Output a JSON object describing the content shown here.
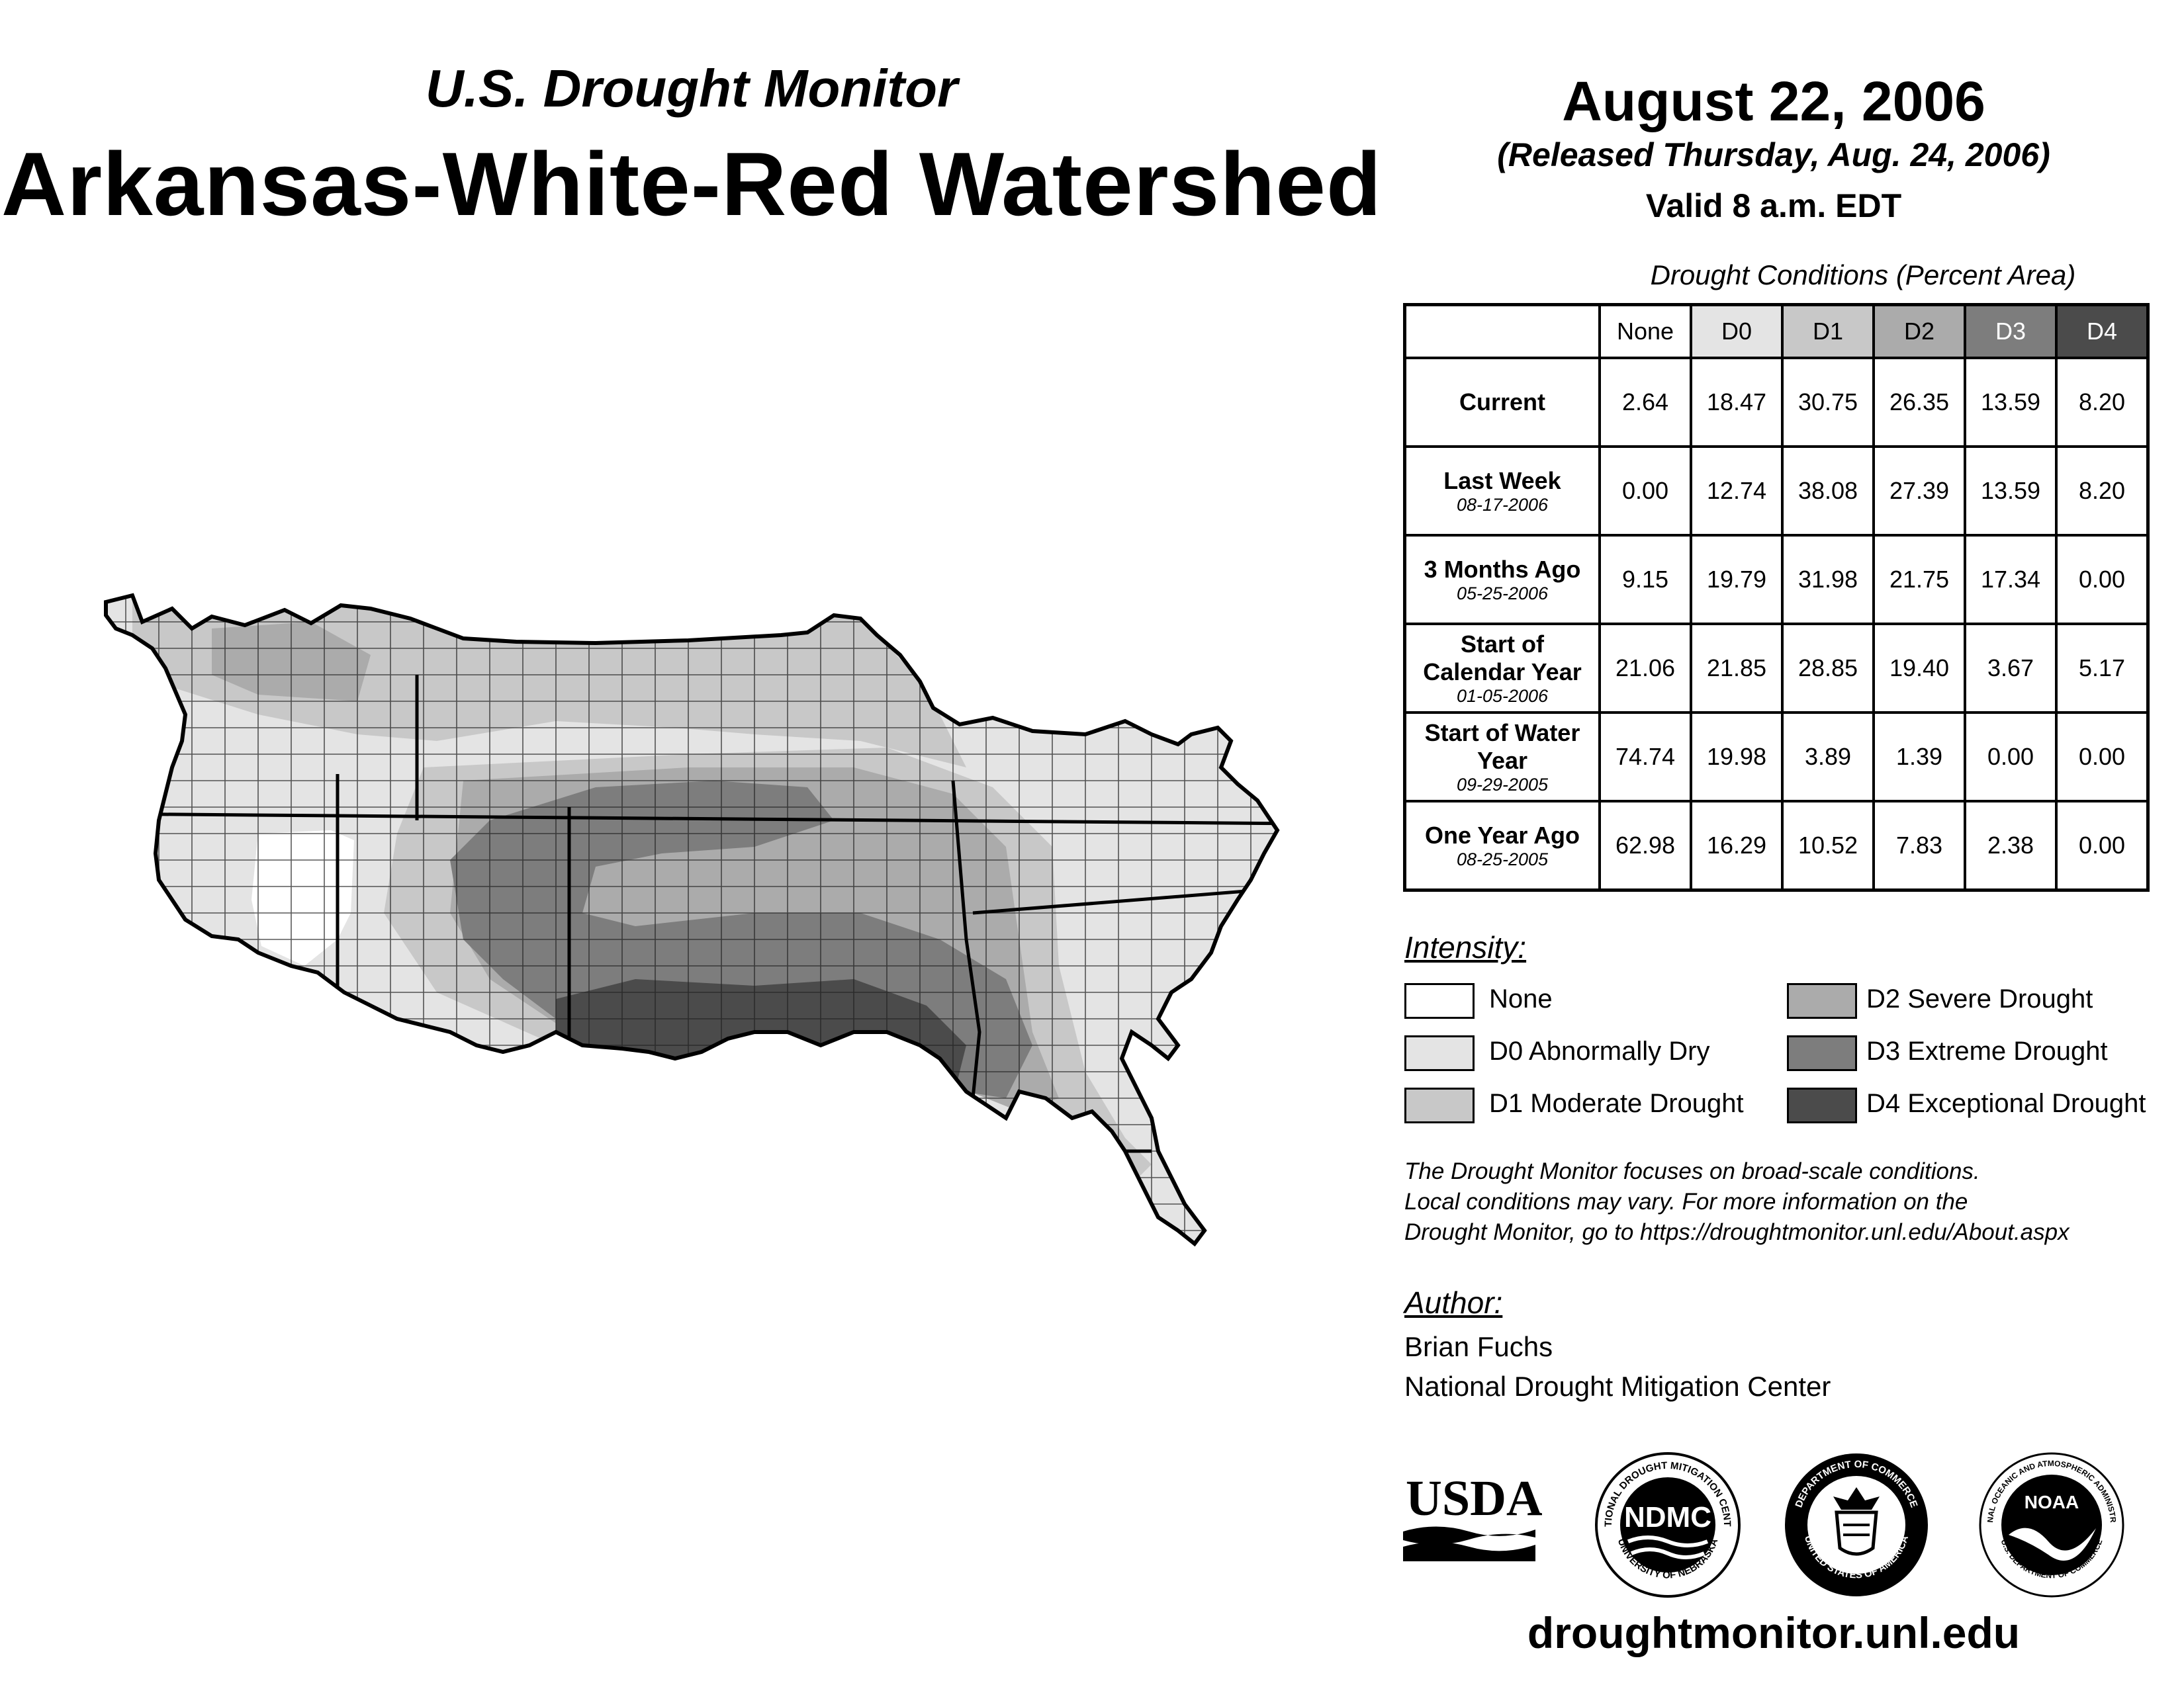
{
  "header": {
    "subtitle": "U.S. Drought Monitor",
    "title": "Arkansas-White-Red Watershed",
    "date": "August 22, 2006",
    "released": "(Released Thursday, Aug. 24, 2006)",
    "valid": "Valid 8 a.m. EDT"
  },
  "table": {
    "caption": "Drought Conditions (Percent Area)",
    "columns": [
      "None",
      "D0",
      "D1",
      "D2",
      "D3",
      "D4"
    ],
    "rows": [
      {
        "label": "Current",
        "date": "",
        "values": [
          "2.64",
          "18.47",
          "30.75",
          "26.35",
          "13.59",
          "8.20"
        ]
      },
      {
        "label": "Last Week",
        "date": "08-17-2006",
        "values": [
          "0.00",
          "12.74",
          "38.08",
          "27.39",
          "13.59",
          "8.20"
        ]
      },
      {
        "label": "3 Months Ago",
        "date": "05-25-2006",
        "values": [
          "9.15",
          "19.79",
          "31.98",
          "21.75",
          "17.34",
          "0.00"
        ]
      },
      {
        "label": "Start of Calendar Year",
        "date": "01-05-2006",
        "values": [
          "21.06",
          "21.85",
          "28.85",
          "19.40",
          "3.67",
          "5.17"
        ]
      },
      {
        "label": "Start of Water Year",
        "date": "09-29-2005",
        "values": [
          "74.74",
          "19.98",
          "3.89",
          "1.39",
          "0.00",
          "0.00"
        ]
      },
      {
        "label": "One Year Ago",
        "date": "08-25-2005",
        "values": [
          "62.98",
          "16.29",
          "10.52",
          "7.83",
          "2.38",
          "0.00"
        ]
      }
    ]
  },
  "legend": {
    "title": "Intensity:",
    "items": [
      {
        "label": "None",
        "color": "#ffffff"
      },
      {
        "label": "D0 Abnormally Dry",
        "color": "#e4e4e4"
      },
      {
        "label": "D1 Moderate Drought",
        "color": "#c8c8c8"
      },
      {
        "label": "D2 Severe Drought",
        "color": "#ababab"
      },
      {
        "label": "D3 Extreme Drought",
        "color": "#7d7d7d"
      },
      {
        "label": "D4 Exceptional Drought",
        "color": "#4b4b4b"
      }
    ]
  },
  "note": {
    "line1": "The Drought Monitor focuses on broad-scale conditions.",
    "line2": "Local conditions may vary. For more information on the",
    "line3": "Drought Monitor, go to https://droughtmonitor.unl.edu/About.aspx"
  },
  "author": {
    "title": "Author:",
    "name": "Brian Fuchs",
    "org": "National Drought Mitigation Center"
  },
  "logos": {
    "usda": "USDA",
    "ndmc": "NDMC",
    "ndmc_ring_top": "NATIONAL DROUGHT MITIGATION CENTER",
    "ndmc_ring_bottom": "UNIVERSITY OF NEBRASKA",
    "doc_ring_top": "DEPARTMENT OF COMMERCE",
    "doc_ring_bottom": "UNITED STATES OF AMERICA",
    "noaa": "NOAA",
    "noaa_ring_top": "NATIONAL OCEANIC AND ATMOSPHERIC ADMINISTRATION",
    "noaa_ring_bottom": "U.S. DEPARTMENT OF COMMERCE"
  },
  "footer": {
    "url": "droughtmonitor.unl.edu"
  }
}
